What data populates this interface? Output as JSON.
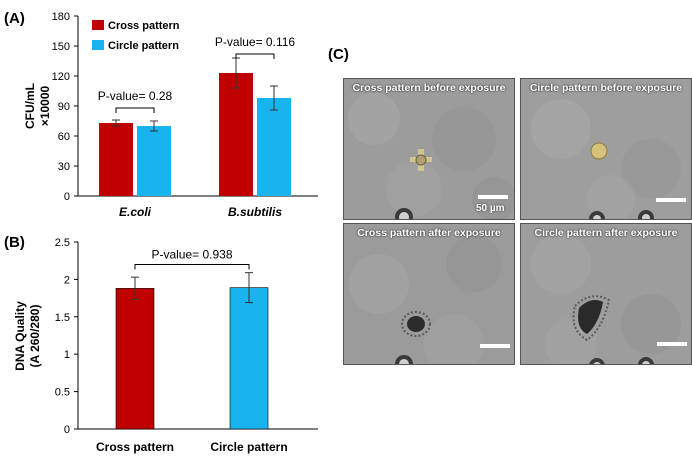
{
  "panels": {
    "a": "(A)",
    "b": "(B)",
    "c": "(C)"
  },
  "colors": {
    "cross": "#c00000",
    "circle": "#18b4f0",
    "error": "#333333"
  },
  "chart_data": [
    {
      "type": "bar",
      "panel": "(A)",
      "categories": [
        "E.coli",
        "B.subtilis"
      ],
      "series": [
        {
          "name": "Cross pattern",
          "values": [
            73,
            123
          ],
          "errors": [
            3,
            15
          ]
        },
        {
          "name": "Circle pattern",
          "values": [
            70,
            98
          ],
          "errors": [
            5,
            12
          ]
        }
      ],
      "ylabel": "CFU/mL",
      "ylabel2": "×10000",
      "ylim": [
        0,
        180
      ],
      "yticks": [
        0,
        30,
        60,
        90,
        120,
        150,
        180
      ],
      "legend_position": "top-left",
      "annotations": [
        "P-value= 0.28",
        "P-value= 0.116"
      ],
      "pvalue_levels": [
        88,
        142
      ]
    },
    {
      "type": "bar",
      "panel": "(B)",
      "categories": [
        "Cross pattern",
        "Circle pattern"
      ],
      "values": [
        1.88,
        1.89
      ],
      "errors": [
        0.15,
        0.2
      ],
      "ylabel": "DNA Quality",
      "ylabel2": "(A 260/280)",
      "ylim": [
        0,
        2.5
      ],
      "yticks": [
        0,
        0.5,
        1,
        1.5,
        2,
        2.5
      ],
      "annotation": "P-value= 0.938",
      "pvalue_level": 2.2
    }
  ],
  "micrographs": [
    {
      "title": "Cross pattern before exposure",
      "scale": "50 µm"
    },
    {
      "title": "Circle pattern before exposure"
    },
    {
      "title": "Cross pattern after exposure"
    },
    {
      "title": "Circle pattern after exposure"
    }
  ]
}
